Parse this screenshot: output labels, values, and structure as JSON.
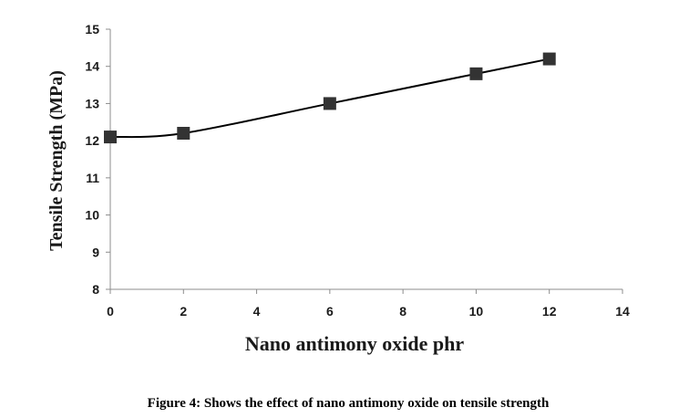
{
  "chart_data": {
    "type": "line",
    "title": "",
    "xlabel": "Nano antimony oxide phr",
    "ylabel": "Tensile Strength (MPa)",
    "xlim": [
      0,
      14
    ],
    "ylim": [
      8,
      15
    ],
    "xticks": [
      0,
      2,
      4,
      6,
      8,
      10,
      12,
      14
    ],
    "yticks": [
      8,
      9,
      10,
      11,
      12,
      13,
      14,
      15
    ],
    "grid": false,
    "legend": "none",
    "series": [
      {
        "x": [
          0,
          2,
          6,
          10,
          12
        ],
        "y": [
          12.1,
          12.2,
          13.0,
          13.8,
          14.2
        ],
        "color": "#000000",
        "marker": "square",
        "marker_color": "#333333",
        "smooth": true
      }
    ]
  },
  "caption": "Figure 4: Shows the effect of nano antimony oxide on tensile strength"
}
